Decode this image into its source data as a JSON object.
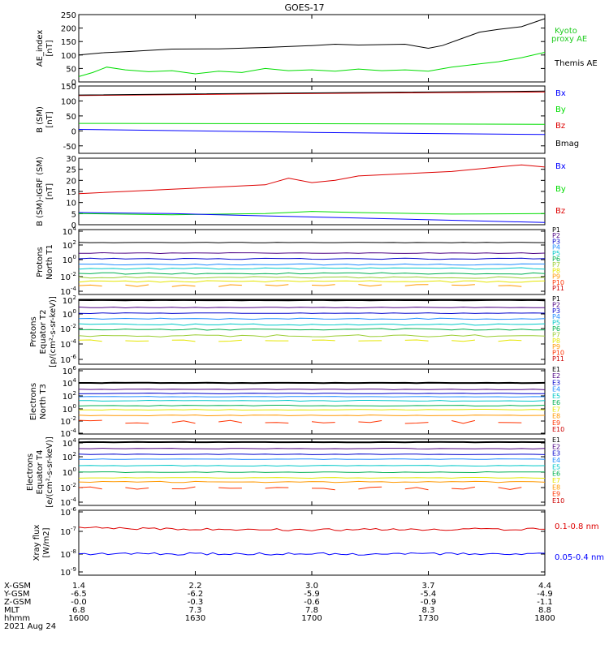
{
  "title": "GOES-17",
  "date_label": "2021 Aug 24",
  "colors": {
    "black": "#000000",
    "blue": "#0000ff",
    "green": "#00dd00",
    "red": "#dd0000",
    "proxy_green": "#22cc22",
    "p1": "#000000",
    "p2": "#4b0082",
    "p3": "#0000cc",
    "p4": "#1e8cff",
    "p5": "#00c8c8",
    "p6": "#00b050",
    "p7": "#9acd32",
    "p8": "#e6e600",
    "p9": "#ff9900",
    "p10": "#ff3300",
    "p11": "#cc0000"
  },
  "chart_data": [
    {
      "type": "line",
      "ylabel": "AE_index [nT]",
      "ylim": [
        0,
        250
      ],
      "yticks": [
        "250",
        "200",
        "150",
        "100",
        "50",
        "0"
      ],
      "x_range": [
        "1600",
        "1800"
      ],
      "legend": [
        {
          "name": "Kyoto proxy AE",
          "color": "#22cc22"
        },
        {
          "name": "Themis AE",
          "color": "#000000"
        }
      ],
      "series": [
        {
          "name": "Themis AE",
          "color": "#000000",
          "x": [
            0,
            0.05,
            0.1,
            0.2,
            0.3,
            0.4,
            0.5,
            0.55,
            0.6,
            0.7,
            0.75,
            0.78,
            0.82,
            0.86,
            0.9,
            0.95,
            1.0
          ],
          "y": [
            100,
            108,
            112,
            122,
            123,
            128,
            135,
            140,
            137,
            140,
            125,
            135,
            160,
            185,
            195,
            205,
            235
          ]
        },
        {
          "name": "Themis AE green",
          "color": "#00dd00",
          "x": [
            0,
            0.03,
            0.06,
            0.1,
            0.15,
            0.2,
            0.25,
            0.3,
            0.35,
            0.4,
            0.45,
            0.5,
            0.55,
            0.6,
            0.65,
            0.7,
            0.75,
            0.8,
            0.85,
            0.9,
            0.95,
            1.0
          ],
          "y": [
            20,
            35,
            55,
            45,
            38,
            42,
            30,
            40,
            35,
            50,
            42,
            45,
            40,
            48,
            42,
            45,
            40,
            55,
            65,
            75,
            90,
            110
          ]
        }
      ]
    },
    {
      "type": "line",
      "ylabel": "B (SM) [nT]",
      "ylim": [
        -75,
        150
      ],
      "yticks": [
        "150",
        "100",
        "50",
        "0",
        "-50"
      ],
      "legend": [
        {
          "name": "Bx",
          "color": "#0000ff"
        },
        {
          "name": "By",
          "color": "#00dd00"
        },
        {
          "name": "Bz",
          "color": "#dd0000"
        },
        {
          "name": "Bmag",
          "color": "#000000"
        }
      ],
      "series": [
        {
          "name": "Bx",
          "color": "#0000ff",
          "x": [
            0,
            0.5,
            1.0
          ],
          "y": [
            5,
            -5,
            -12
          ]
        },
        {
          "name": "By",
          "color": "#00dd00",
          "x": [
            0,
            0.5,
            1.0
          ],
          "y": [
            25,
            24,
            22
          ]
        },
        {
          "name": "Bz",
          "color": "#dd0000",
          "x": [
            0,
            0.5,
            1.0
          ],
          "y": [
            118,
            125,
            130
          ]
        },
        {
          "name": "Bmag",
          "color": "#000000",
          "x": [
            0,
            0.5,
            1.0
          ],
          "y": [
            120,
            127,
            133
          ]
        }
      ]
    },
    {
      "type": "line",
      "ylabel": "B (SM)-IGRF (SM) [nT]",
      "ylim": [
        0,
        30
      ],
      "yticks": [
        "30",
        "25",
        "20",
        "15",
        "10",
        "5",
        "0"
      ],
      "legend": [
        {
          "name": "Bx",
          "color": "#0000ff"
        },
        {
          "name": "By",
          "color": "#00dd00"
        },
        {
          "name": "Bz",
          "color": "#dd0000"
        }
      ],
      "series": [
        {
          "name": "Bz",
          "color": "#dd0000",
          "x": [
            0,
            0.1,
            0.2,
            0.3,
            0.4,
            0.45,
            0.5,
            0.55,
            0.6,
            0.7,
            0.8,
            0.9,
            0.95,
            1.0
          ],
          "y": [
            14,
            15,
            16,
            17,
            18,
            21,
            19,
            20,
            22,
            23,
            24,
            26,
            27,
            26
          ]
        },
        {
          "name": "By",
          "color": "#00dd00",
          "x": [
            0,
            0.2,
            0.4,
            0.5,
            0.6,
            0.8,
            1.0
          ],
          "y": [
            5,
            4.5,
            5,
            6,
            5.5,
            4.8,
            5
          ]
        },
        {
          "name": "Bx",
          "color": "#0000ff",
          "x": [
            0,
            0.2,
            0.4,
            0.6,
            0.8,
            1.0
          ],
          "y": [
            5.5,
            5,
            4,
            3,
            2,
            1
          ]
        }
      ]
    },
    {
      "type": "line",
      "ylabel": "Protons North T1",
      "ylabel_lines": [
        "Protons",
        "North T1"
      ],
      "yscale": "log",
      "ylim_exp": [
        -5,
        4
      ],
      "yticks": [
        {
          "base": "10",
          "exp": "4"
        },
        {
          "base": "10",
          "exp": "2"
        },
        {
          "base": "10",
          "exp": "0"
        },
        {
          "base": "10",
          "exp": "-2"
        },
        {
          "base": "10",
          "exp": "-4"
        }
      ],
      "legend": [
        "P1",
        "P2",
        "P3",
        "P4",
        "P5",
        "P6",
        "P7",
        "P8",
        "P9",
        "P10",
        "P11"
      ]
    },
    {
      "type": "line",
      "ylabel": "Protons Equator T2 [p/(cm²-s-sr-keV)]",
      "ylabel_lines": [
        "Protons",
        "Equator T2",
        "[p/(cm²-s-sr-keV)]"
      ],
      "yscale": "log",
      "yticks": [
        {
          "base": "10",
          "exp": "2"
        },
        {
          "base": "10",
          "exp": "0"
        },
        {
          "base": "10",
          "exp": "-2"
        },
        {
          "base": "10",
          "exp": "-4"
        },
        {
          "base": "10",
          "exp": "-6"
        }
      ],
      "legend": [
        "P1",
        "P2",
        "P3",
        "P4",
        "P5",
        "P6",
        "P7",
        "P8",
        "P9",
        "P10",
        "P11"
      ]
    },
    {
      "type": "line",
      "ylabel": "Electrons North T3",
      "ylabel_lines": [
        "Electrons",
        "North T3"
      ],
      "yscale": "log",
      "yticks": [
        {
          "base": "10",
          "exp": "6"
        },
        {
          "base": "10",
          "exp": "4"
        },
        {
          "base": "10",
          "exp": "2"
        },
        {
          "base": "10",
          "exp": "0"
        },
        {
          "base": "10",
          "exp": "-2"
        },
        {
          "base": "10",
          "exp": "-4"
        }
      ],
      "legend": [
        "E1",
        "E2",
        "E3",
        "E4",
        "E5",
        "E6",
        "E7",
        "E8",
        "E9",
        "E10"
      ]
    },
    {
      "type": "line",
      "ylabel": "Electrons Equator T4 [e/(cm²-s-sr-keV)]",
      "ylabel_lines": [
        "Electrons",
        "Equator T4",
        "[e/(cm²-s-sr-keV)]"
      ],
      "yscale": "log",
      "yticks": [
        {
          "base": "10",
          "exp": "4"
        },
        {
          "base": "10",
          "exp": "2"
        },
        {
          "base": "10",
          "exp": "0"
        },
        {
          "base": "10",
          "exp": "-2"
        },
        {
          "base": "10",
          "exp": "-4"
        }
      ],
      "legend": [
        "E1",
        "E2",
        "E3",
        "E4",
        "E5",
        "E6",
        "E7",
        "E8",
        "E9",
        "E10"
      ]
    },
    {
      "type": "line",
      "ylabel": "Xray flux [W/m2]",
      "ylabel_lines": [
        "Xray flux",
        "[W/m2]"
      ],
      "yscale": "log",
      "yticks": [
        {
          "base": "10",
          "exp": "-6"
        },
        {
          "base": "10",
          "exp": "-7"
        },
        {
          "base": "10",
          "exp": "-8"
        },
        {
          "base": "10",
          "exp": "-9"
        }
      ],
      "legend": [
        {
          "name": "0.1-0.8 nm",
          "color": "#dd0000"
        },
        {
          "name": "0.05-0.4 nm",
          "color": "#0000ff"
        }
      ],
      "series": [
        {
          "name": "0.1-0.8 nm",
          "color": "#dd0000",
          "x": [
            0,
            0.5,
            1.0
          ],
          "y_exp": [
            -6.8,
            -6.9,
            -6.85
          ]
        },
        {
          "name": "0.05-0.4 nm",
          "color": "#0000ff",
          "x": [
            0,
            0.5,
            1.0
          ],
          "y_exp": [
            -8.1,
            -8.1,
            -8.1
          ]
        }
      ]
    }
  ],
  "x_axis": {
    "row_labels": [
      "X-GSM",
      "Y-GSM",
      "Z-GSM",
      "MLT",
      "hhmm"
    ],
    "columns": [
      [
        "1.4",
        "-6.5",
        "-0.0",
        "6.8",
        "1600"
      ],
      [
        "2.2",
        "-6.2",
        "-0.3",
        "7.3",
        "1630"
      ],
      [
        "3.0",
        "-5.9",
        "-0.6",
        "7.8",
        "1700"
      ],
      [
        "3.7",
        "-5.4",
        "-0.9",
        "8.3",
        "1730"
      ],
      [
        "4.4",
        "-4.9",
        "-1.1",
        "8.8",
        "1800"
      ]
    ]
  }
}
